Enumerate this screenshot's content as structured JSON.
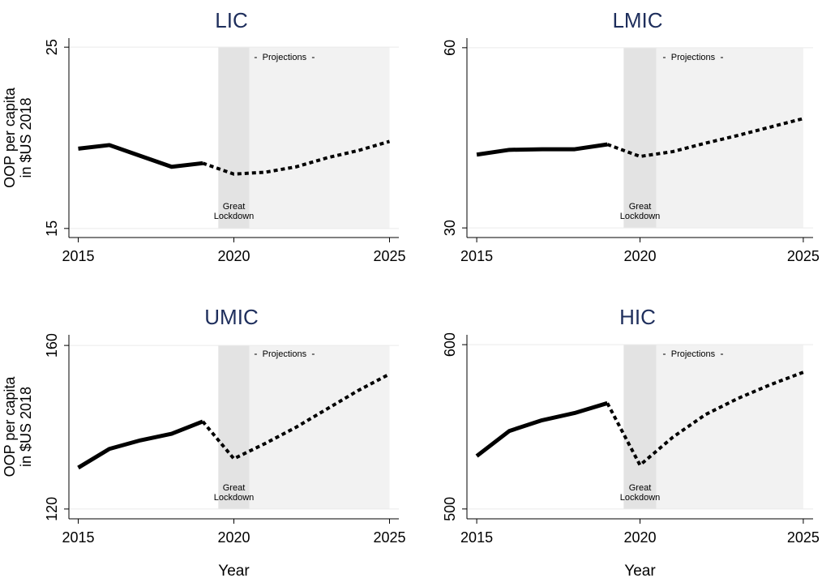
{
  "chart_data": [
    {
      "type": "line",
      "title": "LIC",
      "ylabel": [
        "OOP per capita",
        "in $US 2018"
      ],
      "x": [
        2015,
        2016,
        2017,
        2018,
        2019,
        2020,
        2021,
        2022,
        2023,
        2024,
        2025
      ],
      "series": [
        {
          "style": "solid",
          "color": "#000000",
          "values": [
            19.4,
            19.6,
            19.0,
            18.4,
            18.6,
            null,
            null,
            null,
            null,
            null,
            null
          ]
        },
        {
          "style": "dashed",
          "color": "#000000",
          "values": [
            null,
            null,
            null,
            null,
            18.6,
            18.0,
            18.1,
            18.4,
            18.9,
            19.3,
            19.8
          ]
        }
      ],
      "xlim": [
        2014.7,
        2025.3
      ],
      "xticks": [
        2015,
        2020,
        2025
      ],
      "ylim": [
        14.5,
        25.5
      ],
      "yticks": [
        15,
        25
      ],
      "grid": true,
      "regions": [
        {
          "from": 2019.5,
          "to": 2020.5,
          "label": "Great Lockdown",
          "color": "#e3e3e3"
        },
        {
          "from": 2020.5,
          "to": 2025,
          "label": "Projections",
          "color": "#f2f2f2"
        }
      ]
    },
    {
      "type": "line",
      "title": "LMIC",
      "x": [
        2015,
        2016,
        2017,
        2018,
        2019,
        2020,
        2021,
        2022,
        2023,
        2024,
        2025
      ],
      "series": [
        {
          "style": "solid",
          "color": "#000000",
          "values": [
            42.2,
            43.0,
            43.1,
            43.1,
            43.9,
            null,
            null,
            null,
            null,
            null,
            null
          ]
        },
        {
          "style": "dashed",
          "color": "#000000",
          "values": [
            null,
            null,
            null,
            null,
            43.9,
            41.9,
            42.7,
            44.1,
            45.4,
            46.8,
            48.2
          ]
        }
      ],
      "xlim": [
        2014.7,
        2025.3
      ],
      "xticks": [
        2015,
        2020,
        2025
      ],
      "ylim": [
        28.4,
        61.6
      ],
      "yticks": [
        30,
        60
      ],
      "grid": true,
      "regions": [
        {
          "from": 2019.5,
          "to": 2020.5,
          "label": "Great Lockdown",
          "color": "#e3e3e3"
        },
        {
          "from": 2020.5,
          "to": 2025,
          "label": "Projections",
          "color": "#f2f2f2"
        }
      ]
    },
    {
      "type": "line",
      "title": "UMIC",
      "ylabel": [
        "OOP per capita",
        "in $US 2018"
      ],
      "xlabel": "Year",
      "x": [
        2015,
        2016,
        2017,
        2018,
        2019,
        2020,
        2021,
        2022,
        2023,
        2024,
        2025
      ],
      "series": [
        {
          "style": "solid",
          "color": "#000000",
          "values": [
            130.1,
            134.7,
            136.8,
            138.4,
            141.4,
            null,
            null,
            null,
            null,
            null,
            null
          ]
        },
        {
          "style": "dashed",
          "color": "#000000",
          "values": [
            null,
            null,
            null,
            null,
            141.4,
            132.3,
            136.0,
            140.0,
            144.5,
            149.0,
            153.0
          ]
        }
      ],
      "xlim": [
        2014.7,
        2025.3
      ],
      "xticks": [
        2015,
        2020,
        2025
      ],
      "ylim": [
        117.6,
        162.6
      ],
      "yticks": [
        120,
        160
      ],
      "grid": true,
      "regions": [
        {
          "from": 2019.5,
          "to": 2020.5,
          "label": "Great Lockdown",
          "color": "#e3e3e3"
        },
        {
          "from": 2020.5,
          "to": 2025,
          "label": "Projections",
          "color": "#f2f2f2"
        }
      ]
    },
    {
      "type": "line",
      "title": "HIC",
      "xlabel": "Year",
      "x": [
        2015,
        2016,
        2017,
        2018,
        2019,
        2020,
        2021,
        2022,
        2023,
        2024,
        2025
      ],
      "series": [
        {
          "style": "solid",
          "color": "#000000",
          "values": [
            532.2,
            547.5,
            554.0,
            558.4,
            564.4,
            null,
            null,
            null,
            null,
            null,
            null
          ]
        },
        {
          "style": "dashed",
          "color": "#000000",
          "values": [
            null,
            null,
            null,
            null,
            564.4,
            526.7,
            543.6,
            557.4,
            567.3,
            575.7,
            583.2
          ]
        }
      ],
      "xlim": [
        2014.7,
        2025.3
      ],
      "xticks": [
        2015,
        2020,
        2025
      ],
      "ylim": [
        494,
        606
      ],
      "yticks": [
        500,
        600
      ],
      "grid": true,
      "regions": [
        {
          "from": 2019.5,
          "to": 2020.5,
          "label": "Great Lockdown",
          "color": "#e3e3e3"
        },
        {
          "from": 2020.5,
          "to": 2025,
          "label": "Projections",
          "color": "#f2f2f2"
        }
      ]
    }
  ]
}
